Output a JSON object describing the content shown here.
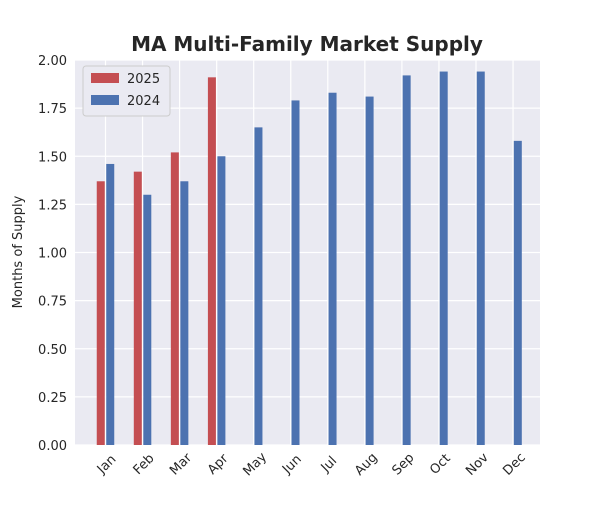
{
  "chart_data": {
    "type": "bar",
    "title": "MA Multi-Family Market Supply",
    "xlabel": "",
    "ylabel": "Months of Supply",
    "categories": [
      "Jan",
      "Feb",
      "Mar",
      "Apr",
      "May",
      "Jun",
      "Jul",
      "Aug",
      "Sep",
      "Oct",
      "Nov",
      "Dec"
    ],
    "series": [
      {
        "name": "2025",
        "color": "#c44e52",
        "values": [
          1.37,
          1.42,
          1.52,
          1.91,
          null,
          null,
          null,
          null,
          null,
          null,
          null,
          null
        ]
      },
      {
        "name": "2024",
        "color": "#4c72b0",
        "values": [
          1.46,
          1.3,
          1.37,
          1.5,
          1.65,
          1.79,
          1.83,
          1.81,
          1.92,
          1.94,
          1.94,
          1.58
        ]
      }
    ],
    "ylim": [
      0,
      2.0
    ],
    "yticks": [
      "0.00",
      "0.25",
      "0.50",
      "0.75",
      "1.00",
      "1.25",
      "1.50",
      "1.75",
      "2.00"
    ],
    "grid": true,
    "legend_position": "top-left"
  }
}
